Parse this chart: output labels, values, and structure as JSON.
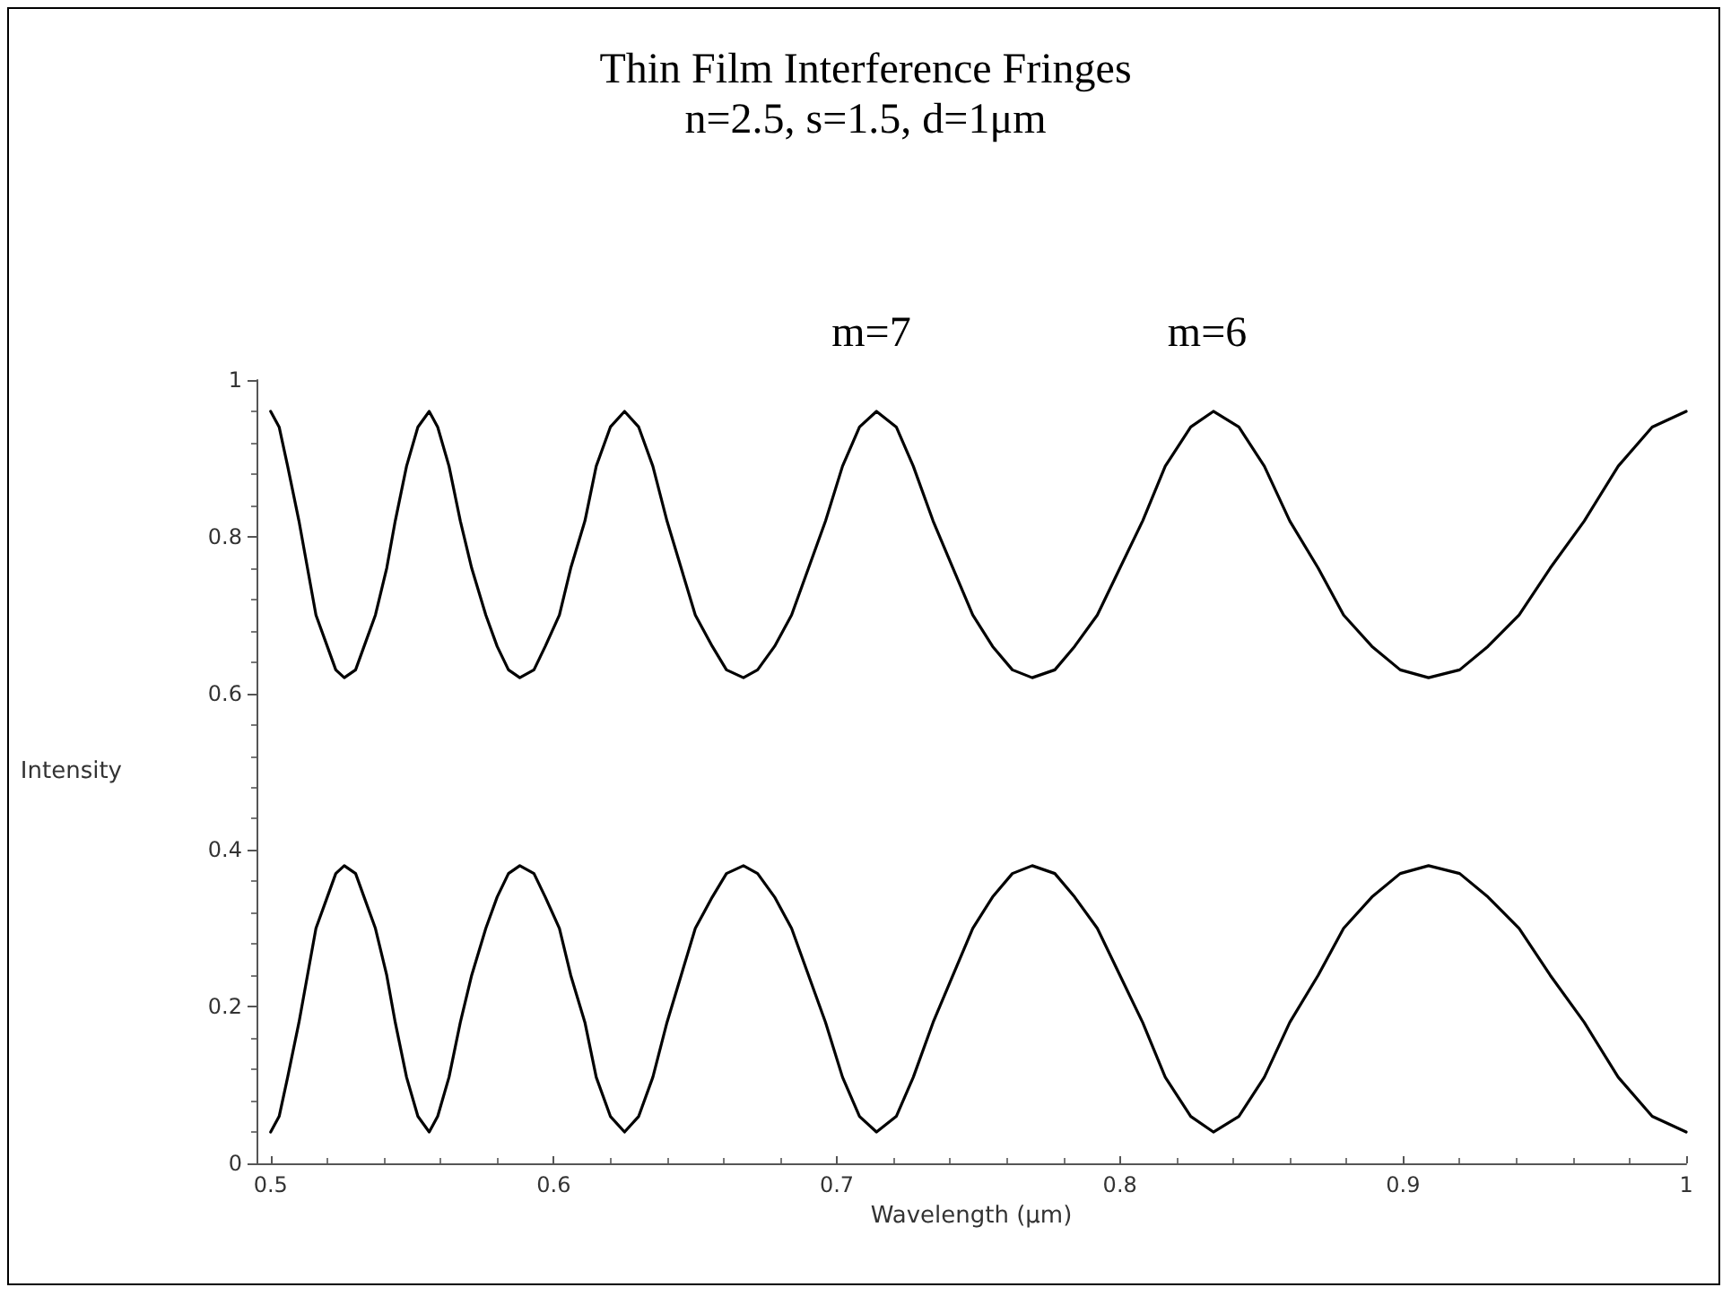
{
  "chart_data": {
    "type": "line",
    "title": "Thin Film Interference Fringes",
    "subtitle": "n=2.5, s=1.5, d=1μm",
    "xlabel": "Wavelength (μm)",
    "ylabel": "Intensity",
    "annotations": [
      "m=7",
      "m=6"
    ],
    "x": [
      0.5,
      0.503,
      0.506,
      0.51,
      0.513,
      0.516,
      0.52,
      0.523,
      0.526,
      0.53,
      0.533,
      0.537,
      0.541,
      0.544,
      0.548,
      0.552,
      0.556,
      0.559,
      0.563,
      0.567,
      0.571,
      0.576,
      0.58,
      0.584,
      0.588,
      0.593,
      0.597,
      0.602,
      0.606,
      0.611,
      0.615,
      0.62,
      0.625,
      0.63,
      0.635,
      0.64,
      0.645,
      0.65,
      0.656,
      0.661,
      0.667,
      0.672,
      0.678,
      0.684,
      0.69,
      0.696,
      0.702,
      0.708,
      0.714,
      0.721,
      0.727,
      0.734,
      0.741,
      0.748,
      0.755,
      0.762,
      0.769,
      0.777,
      0.784,
      0.792,
      0.8,
      0.808,
      0.816,
      0.825,
      0.833,
      0.842,
      0.851,
      0.86,
      0.87,
      0.879,
      0.889,
      0.899,
      0.909,
      0.92,
      0.93,
      0.941,
      0.952,
      0.964,
      0.976,
      0.988,
      1
    ],
    "series": [
      {
        "color": "#000000",
        "values": [
          0.96,
          0.94,
          0.89,
          0.82,
          0.76,
          0.7,
          0.66,
          0.63,
          0.62,
          0.63,
          0.66,
          0.7,
          0.76,
          0.82,
          0.89,
          0.94,
          0.96,
          0.94,
          0.89,
          0.82,
          0.76,
          0.7,
          0.66,
          0.63,
          0.62,
          0.63,
          0.66,
          0.7,
          0.76,
          0.82,
          0.89,
          0.94,
          0.96,
          0.94,
          0.89,
          0.82,
          0.76,
          0.7,
          0.66,
          0.63,
          0.62,
          0.63,
          0.66,
          0.7,
          0.76,
          0.82,
          0.89,
          0.94,
          0.96,
          0.94,
          0.89,
          0.82,
          0.76,
          0.7,
          0.66,
          0.63,
          0.62,
          0.63,
          0.66,
          0.7,
          0.76,
          0.82,
          0.89,
          0.94,
          0.96,
          0.94,
          0.89,
          0.82,
          0.76,
          0.7,
          0.66,
          0.63,
          0.62,
          0.63,
          0.66,
          0.7,
          0.76,
          0.82,
          0.89,
          0.94,
          0.96
        ]
      },
      {
        "color": "#000000",
        "values": [
          0.04,
          0.06,
          0.11,
          0.18,
          0.24,
          0.3,
          0.34,
          0.37,
          0.38,
          0.37,
          0.34,
          0.3,
          0.24,
          0.18,
          0.11,
          0.06,
          0.04,
          0.06,
          0.11,
          0.18,
          0.24,
          0.3,
          0.34,
          0.37,
          0.38,
          0.37,
          0.34,
          0.3,
          0.24,
          0.18,
          0.11,
          0.06,
          0.04,
          0.06,
          0.11,
          0.18,
          0.24,
          0.3,
          0.34,
          0.37,
          0.38,
          0.37,
          0.34,
          0.3,
          0.24,
          0.18,
          0.11,
          0.06,
          0.04,
          0.06,
          0.11,
          0.18,
          0.24,
          0.3,
          0.34,
          0.37,
          0.38,
          0.37,
          0.34,
          0.3,
          0.24,
          0.18,
          0.11,
          0.06,
          0.04,
          0.06,
          0.11,
          0.18,
          0.24,
          0.3,
          0.34,
          0.37,
          0.38,
          0.37,
          0.34,
          0.3,
          0.24,
          0.18,
          0.11,
          0.06,
          0.04
        ]
      }
    ],
    "xlim": [
      0.495,
      1
    ],
    "xticks": [
      0.5,
      0.6,
      0.7,
      0.8,
      0.9,
      1
    ],
    "ylim": [
      0,
      1
    ],
    "yticks": [
      0,
      0.2,
      0.4,
      0.6,
      0.8,
      1
    ],
    "grid": false,
    "marker": "none",
    "line_style": "solid"
  }
}
